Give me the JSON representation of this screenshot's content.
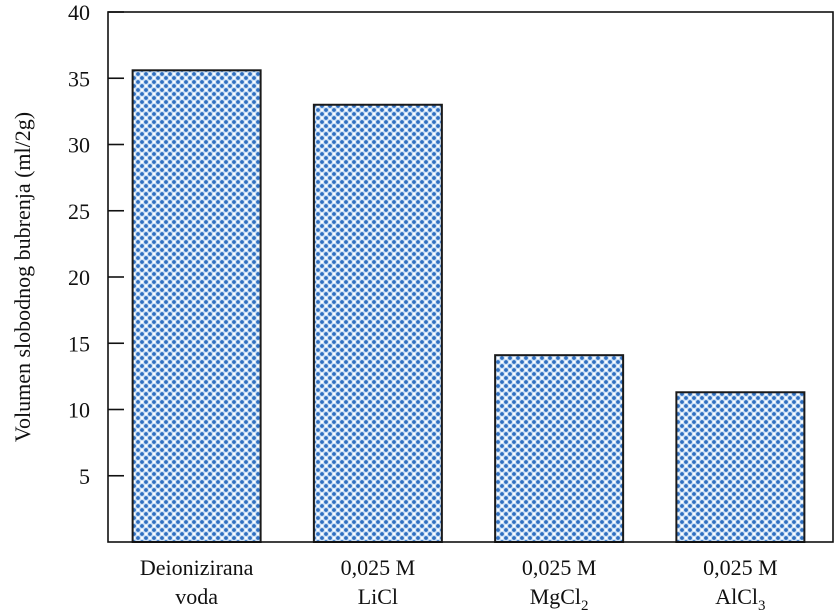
{
  "chart_data": {
    "type": "bar",
    "ylabel": "Volumen slobodnog bubrenja (ml/2g)",
    "ylim": [
      0,
      40
    ],
    "y_ticks": [
      5,
      10,
      15,
      20,
      25,
      30,
      35,
      40
    ],
    "categories": [
      {
        "line1": "Deionizirana",
        "line2": "voda",
        "sub": ""
      },
      {
        "line1": "0,025 M",
        "line2": "LiCl",
        "sub": ""
      },
      {
        "line1": "0,025 M",
        "line2": "MgCl",
        "sub": "2"
      },
      {
        "line1": "0,025 M",
        "line2": "AlCl",
        "sub": "3"
      }
    ],
    "values": [
      35.6,
      33.0,
      14.1,
      11.3
    ],
    "grid": false,
    "legend": "none",
    "bar_pattern": "light-blue dotted (blue dots on light blue)",
    "colors": {
      "bar_fill": "#9cc4ea",
      "bar_dots": "#2f6fc0",
      "axis": "#111111"
    }
  }
}
